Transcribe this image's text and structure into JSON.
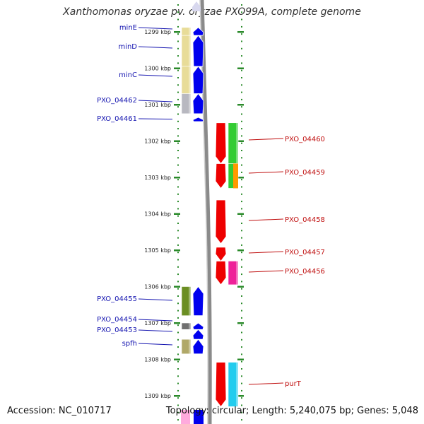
{
  "title": "Xanthomonas oryzae pv. oryzae PXO99A, complete genome",
  "footer": {
    "accession": "Accession: NC_010717",
    "summary": "Topology: circular; Length: 5,240,075 bp; Genes: 5,048"
  },
  "colors": {
    "tick_green": "#2a8a2a",
    "left_label": "#1515b0",
    "right_label": "#c01010",
    "backbone": "#888888",
    "strand_minus": "#0000ee",
    "strand_plus": "#ee0000"
  },
  "axis": {
    "kbp_labels": [
      {
        "kbp": 1299,
        "label": "1299 kbp"
      },
      {
        "kbp": 1300,
        "label": "1300 kbp"
      },
      {
        "kbp": 1301,
        "label": "1301 kbp"
      },
      {
        "kbp": 1302,
        "label": "1302 kbp"
      },
      {
        "kbp": 1303,
        "label": "1303 kbp"
      },
      {
        "kbp": 1304,
        "label": "1304 kbp"
      },
      {
        "kbp": 1305,
        "label": "1305 kbp"
      },
      {
        "kbp": 1306,
        "label": "1306 kbp"
      },
      {
        "kbp": 1307,
        "label": "1307 kbp"
      },
      {
        "kbp": 1308,
        "label": "1308 kbp"
      },
      {
        "kbp": 1309,
        "label": "1309 kbp"
      }
    ]
  },
  "genes_left": [
    {
      "name": "minE",
      "start_kbp": 1298.88,
      "end_kbp": 1299.1,
      "cog_color": "#e8dc98"
    },
    {
      "name": "minD",
      "start_kbp": 1299.1,
      "end_kbp": 1299.95,
      "cog_color": "#e8dc98"
    },
    {
      "name": "minC",
      "start_kbp": 1299.95,
      "end_kbp": 1300.7,
      "cog_color": "#e8dc98"
    },
    {
      "name": "PXO_04462",
      "start_kbp": 1300.7,
      "end_kbp": 1301.25,
      "cog_color": "#b8b8c0"
    },
    {
      "name": "PXO_04461",
      "start_kbp": 1301.35,
      "end_kbp": 1301.45,
      "cog_color": ""
    },
    {
      "name": "PXO_04455",
      "start_kbp": 1306.0,
      "end_kbp": 1306.8,
      "cog_color": "#6b8e23"
    },
    {
      "name": "PXO_04454",
      "start_kbp": 1307.0,
      "end_kbp": 1307.18,
      "cog_color": "#707070"
    },
    {
      "name": "PXO_04453",
      "start_kbp": 1307.18,
      "end_kbp": 1307.45,
      "cog_color": ""
    },
    {
      "name": "spfh",
      "start_kbp": 1307.45,
      "end_kbp": 1307.85,
      "cog_color": "#b0a868"
    }
  ],
  "genes_right": [
    {
      "name": "PXO_04460",
      "start_kbp": 1301.5,
      "end_kbp": 1302.62,
      "cog_color": "#33cc33"
    },
    {
      "name": "PXO_04459",
      "start_kbp": 1302.62,
      "end_kbp": 1303.3,
      "cog_color": "#33cc33"
    },
    {
      "name": "PXO_04458",
      "start_kbp": 1303.62,
      "end_kbp": 1304.82,
      "cog_color": ""
    },
    {
      "name": "PXO_04457",
      "start_kbp": 1304.92,
      "end_kbp": 1305.3,
      "cog_color": ""
    },
    {
      "name": "PXO_04456",
      "start_kbp": 1305.3,
      "end_kbp": 1305.95,
      "cog_color": "#ee2299"
    },
    {
      "name": "purT",
      "start_kbp": 1308.08,
      "end_kbp": 1309.3,
      "cog_color": "#22ccee"
    }
  ]
}
